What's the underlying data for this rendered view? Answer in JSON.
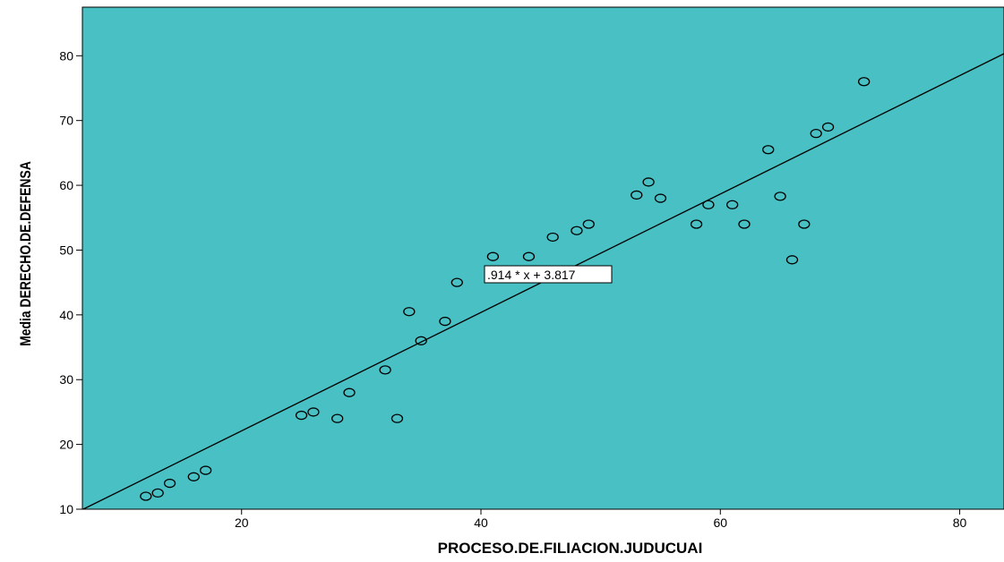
{
  "chart_data": {
    "type": "scatter",
    "xlabel": "PROCESO.DE.FILIACION.JUDUCUAI",
    "ylabel": "Media DERECHO.DE.DEFENSA",
    "xlim": [
      6.7,
      83.7
    ],
    "ylim": [
      10,
      87.5
    ],
    "xticks": [
      20,
      40,
      60,
      80
    ],
    "yticks": [
      10,
      20,
      30,
      40,
      50,
      60,
      70,
      80
    ],
    "grid": false,
    "legend": "none",
    "background_color": "#48C0C4",
    "marker_color": "#000000",
    "fit_line": {
      "slope": 0.914,
      "intercept": 3.817,
      "label": ".914 * x + 3.817"
    },
    "points": [
      {
        "x": 12,
        "y": 12
      },
      {
        "x": 13,
        "y": 12.5
      },
      {
        "x": 14,
        "y": 14
      },
      {
        "x": 16,
        "y": 15
      },
      {
        "x": 17,
        "y": 16
      },
      {
        "x": 25,
        "y": 24.5
      },
      {
        "x": 26,
        "y": 25
      },
      {
        "x": 28,
        "y": 24
      },
      {
        "x": 29,
        "y": 28
      },
      {
        "x": 32,
        "y": 31.5
      },
      {
        "x": 33,
        "y": 24
      },
      {
        "x": 34,
        "y": 40.5
      },
      {
        "x": 35,
        "y": 36
      },
      {
        "x": 37,
        "y": 39
      },
      {
        "x": 38,
        "y": 45
      },
      {
        "x": 41,
        "y": 49
      },
      {
        "x": 44,
        "y": 49
      },
      {
        "x": 46,
        "y": 52
      },
      {
        "x": 48,
        "y": 53
      },
      {
        "x": 49,
        "y": 54
      },
      {
        "x": 53,
        "y": 58.5
      },
      {
        "x": 54,
        "y": 60.5
      },
      {
        "x": 55,
        "y": 58
      },
      {
        "x": 58,
        "y": 54
      },
      {
        "x": 59,
        "y": 57
      },
      {
        "x": 61,
        "y": 57
      },
      {
        "x": 62,
        "y": 54
      },
      {
        "x": 64,
        "y": 65.5
      },
      {
        "x": 65,
        "y": 58.3
      },
      {
        "x": 66,
        "y": 48.5
      },
      {
        "x": 67,
        "y": 54
      },
      {
        "x": 68,
        "y": 68
      },
      {
        "x": 69,
        "y": 69
      },
      {
        "x": 72,
        "y": 76
      }
    ]
  }
}
